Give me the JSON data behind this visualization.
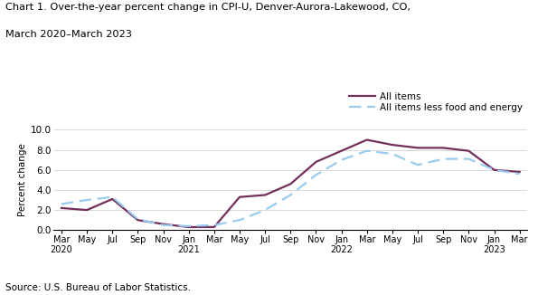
{
  "title_line1": "Chart 1. Over-the-year percent change in CPI-U, Denver-Aurora-Lakewood, CO,",
  "title_line2": "March 2020–March 2023",
  "ylabel": "Percent change",
  "source": "Source: U.S. Bureau of Labor Statistics.",
  "ylim": [
    0.0,
    10.0
  ],
  "yticks": [
    0.0,
    2.0,
    4.0,
    6.0,
    8.0,
    10.0
  ],
  "x_labels": [
    "Mar\n2020",
    "May",
    "Jul",
    "Sep",
    "Nov",
    "Jan\n2021",
    "Mar",
    "May",
    "Jul",
    "Sep",
    "Nov",
    "Jan\n2022",
    "Mar",
    "May",
    "Jul",
    "Sep",
    "Nov",
    "Jan\n2023",
    "Mar"
  ],
  "all_items": [
    2.2,
    2.0,
    3.1,
    1.0,
    0.6,
    0.3,
    0.3,
    3.3,
    3.5,
    4.6,
    6.8,
    7.9,
    9.0,
    8.5,
    8.2,
    8.2,
    7.9,
    6.0,
    5.8
  ],
  "all_items_less": [
    2.6,
    3.0,
    3.3,
    1.1,
    0.5,
    0.4,
    0.5,
    1.0,
    2.0,
    3.5,
    5.5,
    7.0,
    7.9,
    7.6,
    6.5,
    7.1,
    7.1,
    6.0,
    5.6
  ],
  "all_items_color": "#722F5A",
  "all_items_less_color": "#99CCEE",
  "legend_label_1": "All items",
  "legend_label_2": "All items less food and energy"
}
